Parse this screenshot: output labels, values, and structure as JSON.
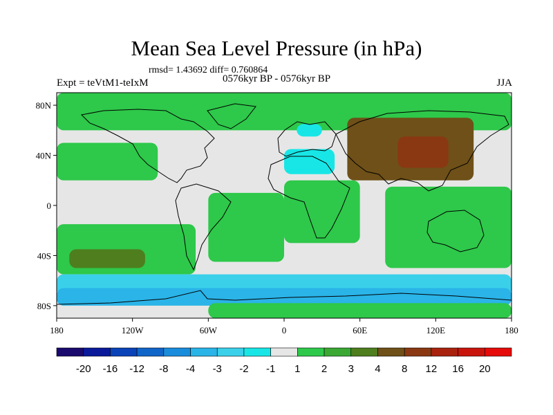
{
  "title": "Mean Sea Level Pressure (in hPa)",
  "stats_text": "rmsd= 1.43692  diff= 0.760864",
  "expt_label": "Expt = teVtM1-teIxM",
  "period_label": "0576kyr BP - 0576kyr BP",
  "season_label": "JJA",
  "colors": {
    "background_land": "#e6e6e6",
    "levels": [
      "#1a0a6e",
      "#0a1a9a",
      "#0a42b8",
      "#1065c8",
      "#1a8cdc",
      "#2ab4e8",
      "#3ad0ea",
      "#18e6e6",
      "#e6e6e6",
      "#2ec84a",
      "#3aa832",
      "#4e7e1e",
      "#6e5018",
      "#8a3812",
      "#a8220e",
      "#c8140c",
      "#e60a0a"
    ]
  },
  "chart_data": {
    "type": "map",
    "projection": "cylindrical-equidistant",
    "lon_range": [
      -180,
      180
    ],
    "lat_range": [
      -90,
      90
    ],
    "lon_ticks": [
      "180",
      "120W",
      "60W",
      "0",
      "60E",
      "120E",
      "180"
    ],
    "lon_tick_values": [
      -180,
      -120,
      -60,
      0,
      60,
      120,
      180
    ],
    "lat_ticks": [
      "80N",
      "40N",
      "0",
      "40S",
      "80S"
    ],
    "lat_tick_values": [
      80,
      40,
      0,
      -40,
      -80
    ],
    "colorbar_labels": [
      "-20",
      "-16",
      "-12",
      "-8",
      "-4",
      "-3",
      "-2",
      "-1",
      "1",
      "2",
      "3",
      "4",
      "8",
      "12",
      "16",
      "20"
    ],
    "regions": [
      {
        "name": "arctic-band",
        "level": 9,
        "lon": [
          -180,
          180
        ],
        "lat": [
          60,
          90
        ]
      },
      {
        "name": "north-pacific-high",
        "level": 9,
        "lon": [
          -180,
          -100
        ],
        "lat": [
          20,
          50
        ]
      },
      {
        "name": "asia-low",
        "level": 12,
        "lon": [
          50,
          150
        ],
        "lat": [
          20,
          70
        ]
      },
      {
        "name": "asia-core",
        "level": 13,
        "lon": [
          90,
          130
        ],
        "lat": [
          30,
          55
        ]
      },
      {
        "name": "south-pacific",
        "level": 9,
        "lon": [
          -180,
          -70
        ],
        "lat": [
          -55,
          -15
        ]
      },
      {
        "name": "south-pacific-core",
        "level": 11,
        "lon": [
          -170,
          -110
        ],
        "lat": [
          -50,
          -35
        ]
      },
      {
        "name": "south-atlantic",
        "level": 9,
        "lon": [
          -60,
          0
        ],
        "lat": [
          -45,
          10
        ]
      },
      {
        "name": "indian-ocean",
        "level": 9,
        "lon": [
          0,
          60
        ],
        "lat": [
          -30,
          20
        ]
      },
      {
        "name": "australia-region",
        "level": 9,
        "lon": [
          80,
          180
        ],
        "lat": [
          -50,
          15
        ]
      },
      {
        "name": "mediterranean-low",
        "level": 7,
        "lon": [
          0,
          40
        ],
        "lat": [
          25,
          45
        ]
      },
      {
        "name": "scandinavia-low",
        "level": 7,
        "lon": [
          10,
          30
        ],
        "lat": [
          55,
          65
        ]
      },
      {
        "name": "southern-ocean-low",
        "level": 6,
        "lon": [
          -180,
          180
        ],
        "lat": [
          -72,
          -55
        ]
      },
      {
        "name": "antarctic-coast",
        "level": 5,
        "lon": [
          -180,
          180
        ],
        "lat": [
          -80,
          -66
        ]
      },
      {
        "name": "antarctic-interior",
        "level": 9,
        "lon": [
          -60,
          180
        ],
        "lat": [
          -90,
          -78
        ]
      }
    ]
  }
}
